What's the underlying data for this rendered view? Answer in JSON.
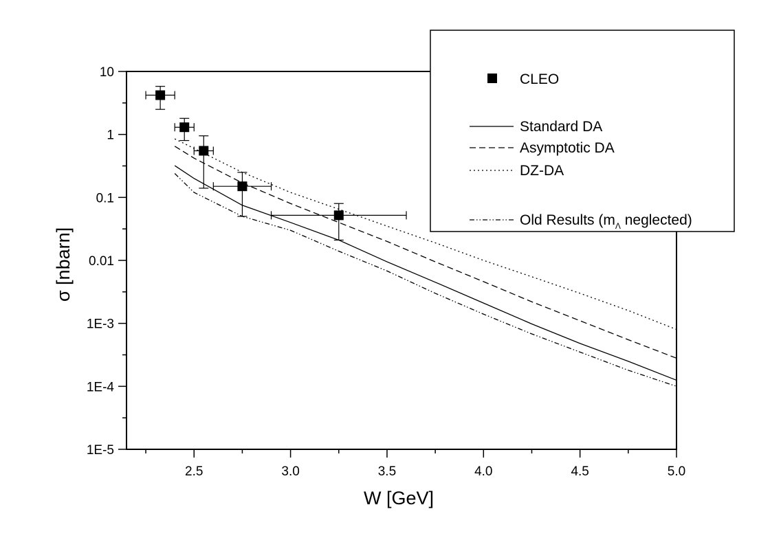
{
  "chart_data": {
    "type": "line",
    "title": "",
    "xlabel": "W [GeV]",
    "ylabel": "σ [nbarn]",
    "xlim": [
      2.15,
      5.0
    ],
    "ylim": [
      1e-05,
      10
    ],
    "yscale": "log",
    "x_ticks": [
      {
        "value": 2.5,
        "label": "2.5"
      },
      {
        "value": 3.0,
        "label": "3.0"
      },
      {
        "value": 3.5,
        "label": "3.5"
      },
      {
        "value": 4.0,
        "label": "4.0"
      },
      {
        "value": 4.5,
        "label": "4.5"
      },
      {
        "value": 5.0,
        "label": "5.0"
      }
    ],
    "y_ticks": [
      {
        "value": 10,
        "label": "10"
      },
      {
        "value": 1,
        "label": "1"
      },
      {
        "value": 0.1,
        "label": "0.1"
      },
      {
        "value": 0.01,
        "label": "0.01"
      },
      {
        "value": 0.001,
        "label": "1E-3"
      },
      {
        "value": 0.0001,
        "label": "1E-4"
      },
      {
        "value": 1e-05,
        "label": "1E-5"
      }
    ],
    "legend": {
      "position": "top-right",
      "data_label": "CLEO",
      "group_spacer": ""
    },
    "data_points": {
      "name": "CLEO",
      "marker": "square",
      "points": [
        {
          "x": 2.325,
          "y": 4.2,
          "xerr": 0.075,
          "ylow": 2.5,
          "yhigh": 5.8
        },
        {
          "x": 2.45,
          "y": 1.3,
          "xerr": 0.05,
          "ylow": 0.8,
          "yhigh": 1.8
        },
        {
          "x": 2.55,
          "y": 0.55,
          "xerr": 0.05,
          "ylow": 0.14,
          "yhigh": 0.95
        },
        {
          "x": 2.75,
          "y": 0.15,
          "xerr": 0.15,
          "ylow": 0.05,
          "yhigh": 0.25
        },
        {
          "x": 3.25,
          "y": 0.052,
          "xerr": 0.35,
          "ylow": 0.021,
          "yhigh": 0.08
        }
      ]
    },
    "series": [
      {
        "name": "Standard DA",
        "dash": "solid",
        "x": [
          2.4,
          2.5,
          2.75,
          3.0,
          3.25,
          3.5,
          3.75,
          4.0,
          4.25,
          4.5,
          4.75,
          5.0
        ],
        "y": [
          0.32,
          0.2,
          0.075,
          0.04,
          0.021,
          0.0095,
          0.0045,
          0.0021,
          0.00098,
          0.00048,
          0.00025,
          0.000125
        ]
      },
      {
        "name": "Asymptotic DA",
        "dash": "dashed",
        "x": [
          2.4,
          2.5,
          2.75,
          3.0,
          3.25,
          3.5,
          3.75,
          4.0,
          4.25,
          4.5,
          4.75,
          5.0
        ],
        "y": [
          0.65,
          0.42,
          0.17,
          0.08,
          0.04,
          0.02,
          0.0095,
          0.0046,
          0.0022,
          0.0011,
          0.00055,
          0.00028
        ]
      },
      {
        "name": "DZ-DA",
        "dash": "dotted",
        "x": [
          2.4,
          2.5,
          2.75,
          3.0,
          3.25,
          3.5,
          3.75,
          4.0,
          4.25,
          4.5,
          4.75,
          5.0
        ],
        "y": [
          0.85,
          0.6,
          0.25,
          0.12,
          0.065,
          0.035,
          0.019,
          0.01,
          0.0055,
          0.003,
          0.0016,
          0.0008
        ]
      },
      {
        "name": "Old Results (m",
        "name_sub": "Λ",
        "name_suffix": " neglected)",
        "dash": "dashdotdot",
        "x": [
          2.4,
          2.5,
          2.75,
          3.0,
          3.25,
          3.5,
          3.75,
          4.0,
          4.25,
          4.5,
          4.75,
          5.0
        ],
        "y": [
          0.24,
          0.12,
          0.05,
          0.03,
          0.014,
          0.0068,
          0.003,
          0.0014,
          0.00068,
          0.00035,
          0.00018,
          0.0001
        ]
      }
    ]
  }
}
